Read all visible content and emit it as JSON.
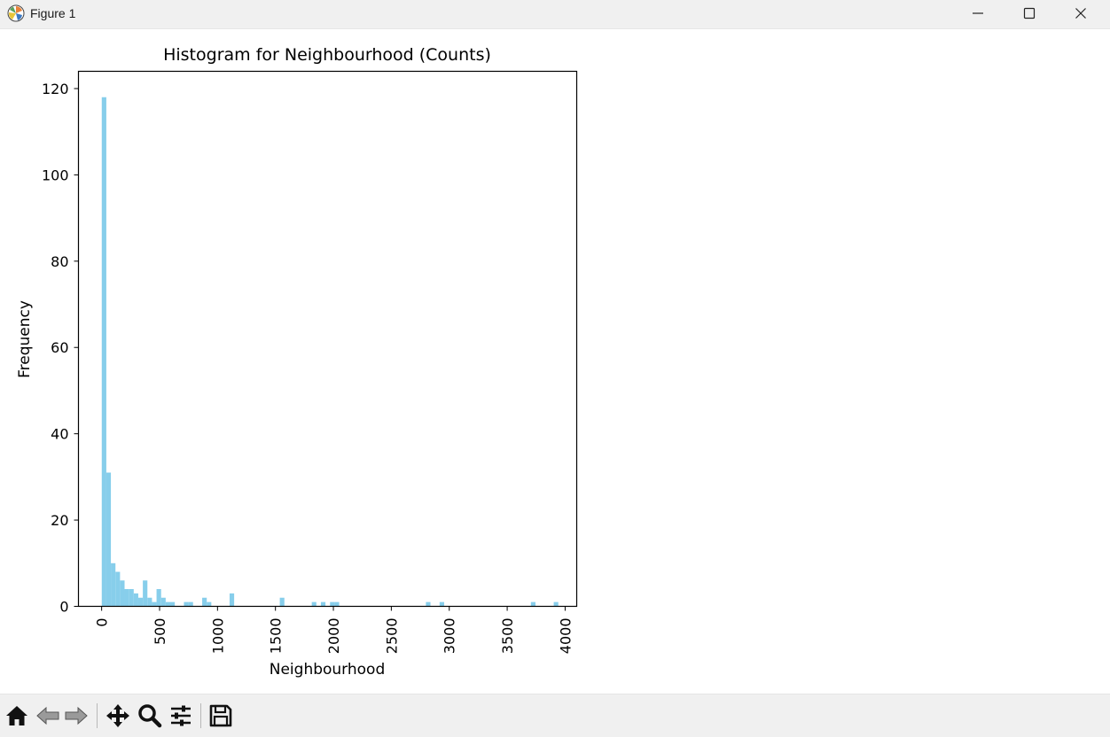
{
  "window": {
    "title": "Figure 1",
    "icons": [
      "matplotlib-logo-icon",
      "minimize-icon",
      "maximize-icon",
      "close-icon"
    ]
  },
  "toolbar": {
    "buttons": [
      "home-icon",
      "back-icon",
      "forward-icon",
      "pan-icon",
      "zoom-icon",
      "configure-subplots-icon",
      "save-icon"
    ]
  },
  "colors": {
    "bar": "#87ceeb",
    "axes": "#000000",
    "window_chrome": "#f0f0f0"
  },
  "chart_data": {
    "type": "bar",
    "title": "Histogram for Neighbourhood (Counts)",
    "xlabel": "Neighbourhood",
    "ylabel": "Frequency",
    "xlim": [
      -200,
      4100
    ],
    "ylim": [
      0,
      124
    ],
    "xticks": [
      0,
      500,
      1000,
      1500,
      2000,
      2500,
      3000,
      3500,
      4000
    ],
    "xtick_labels": [
      "0",
      "500",
      "1000",
      "1500",
      "2000",
      "2500",
      "3000",
      "3500",
      "4000"
    ],
    "xtick_rotation": 90,
    "yticks": [
      0,
      20,
      40,
      60,
      80,
      100,
      120
    ],
    "ytick_labels": [
      "0",
      "20",
      "40",
      "60",
      "80",
      "100",
      "120"
    ],
    "grid": false,
    "legend": false,
    "bin_edges": [
      1.0,
      40.4,
      79.8,
      119.2,
      158.6,
      198.0,
      237.4,
      276.8,
      316.2,
      355.6,
      395.0,
      434.4,
      473.8,
      513.2,
      552.6,
      592.0,
      631.4,
      670.8,
      710.2,
      749.6,
      789.0,
      828.4,
      867.8,
      907.2,
      946.6,
      986.0,
      1025.4,
      1064.8,
      1104.2,
      1143.6,
      1183.0,
      1222.4,
      1261.8,
      1301.2,
      1340.6,
      1380.0,
      1419.4,
      1458.8,
      1498.2,
      1537.6,
      1577.0,
      1616.4,
      1655.8,
      1695.2,
      1734.6,
      1774.0,
      1813.4,
      1852.8,
      1892.2,
      1931.6,
      1971.0,
      2010.4,
      2049.8,
      2089.2,
      2128.6,
      2168.0,
      2207.4,
      2246.8,
      2286.2,
      2325.6,
      2365.0,
      2404.4,
      2443.8,
      2483.2,
      2522.6,
      2562.0,
      2601.4,
      2640.8,
      2680.2,
      2719.6,
      2759.0,
      2798.4,
      2837.8,
      2877.2,
      2916.6,
      2956.0,
      2995.4,
      3034.8,
      3074.2,
      3113.6,
      3153.0,
      3192.4,
      3231.8,
      3271.2,
      3310.6,
      3350.0,
      3389.4,
      3428.8,
      3468.2,
      3507.6,
      3547.0,
      3586.4,
      3625.8,
      3665.2,
      3704.6,
      3744.0,
      3783.4,
      3822.8,
      3862.2,
      3901.6,
      3941.0
    ],
    "counts": [
      118,
      31,
      10,
      8,
      6,
      4,
      4,
      3,
      2,
      6,
      2,
      1,
      4,
      2,
      1,
      1,
      0,
      0,
      1,
      1,
      0,
      0,
      2,
      1,
      0,
      0,
      0,
      0,
      3,
      0,
      0,
      0,
      0,
      0,
      0,
      0,
      0,
      0,
      0,
      2,
      0,
      0,
      0,
      0,
      0,
      0,
      1,
      0,
      1,
      0,
      1,
      1,
      0,
      0,
      0,
      0,
      0,
      0,
      0,
      0,
      0,
      0,
      0,
      0,
      0,
      0,
      0,
      0,
      0,
      0,
      0,
      1,
      0,
      0,
      1,
      0,
      0,
      0,
      0,
      0,
      0,
      0,
      0,
      0,
      0,
      0,
      0,
      0,
      0,
      0,
      0,
      0,
      0,
      0,
      1,
      0,
      0,
      0,
      0,
      1
    ]
  }
}
